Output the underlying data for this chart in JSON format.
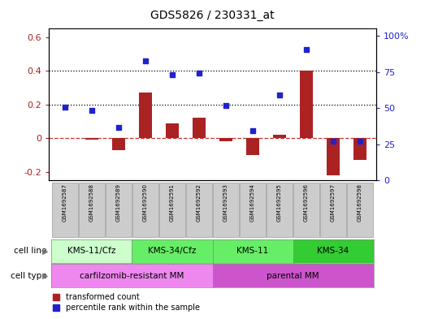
{
  "title": "GDS5826 / 230331_at",
  "samples": [
    "GSM1692587",
    "GSM1692588",
    "GSM1692589",
    "GSM1692590",
    "GSM1692591",
    "GSM1692592",
    "GSM1692593",
    "GSM1692594",
    "GSM1692595",
    "GSM1692596",
    "GSM1692597",
    "GSM1692598"
  ],
  "bar_values": [
    0.0,
    -0.01,
    -0.07,
    0.27,
    0.09,
    0.12,
    -0.02,
    -0.1,
    0.02,
    0.4,
    -0.22,
    -0.13
  ],
  "dot_values": [
    0.185,
    0.165,
    0.065,
    0.46,
    0.375,
    0.385,
    0.195,
    0.045,
    0.255,
    0.525,
    -0.02,
    -0.02
  ],
  "bar_color": "#aa2222",
  "dot_color": "#2222cc",
  "zero_line_color": "#cc3333",
  "hline_values": [
    0.2,
    0.4
  ],
  "hline_color": "#000000",
  "ylim_left": [
    -0.25,
    0.65
  ],
  "ylim_right": [
    0,
    105
  ],
  "right_ticks": [
    0,
    25,
    50,
    75,
    100
  ],
  "right_tick_labels": [
    "0",
    "25",
    "50",
    "75",
    "100%"
  ],
  "left_ticks": [
    -0.2,
    0.0,
    0.2,
    0.4,
    0.6
  ],
  "left_tick_labels": [
    "-0.2",
    "0",
    "0.2",
    "0.4",
    "0.6"
  ],
  "cell_line_groups": [
    {
      "label": "KMS-11/Cfz",
      "start": 0,
      "end": 3,
      "color": "#ccffcc"
    },
    {
      "label": "KMS-34/Cfz",
      "start": 3,
      "end": 6,
      "color": "#66ee66"
    },
    {
      "label": "KMS-11",
      "start": 6,
      "end": 9,
      "color": "#66ee66"
    },
    {
      "label": "KMS-34",
      "start": 9,
      "end": 12,
      "color": "#33cc33"
    }
  ],
  "cell_type_groups": [
    {
      "label": "carfilzomib-resistant MM",
      "start": 0,
      "end": 6,
      "color": "#ee88ee"
    },
    {
      "label": "parental MM",
      "start": 6,
      "end": 12,
      "color": "#cc55cc"
    }
  ],
  "cell_line_label": "cell line",
  "cell_type_label": "cell type",
  "legend_bar_label": "transformed count",
  "legend_dot_label": "percentile rank within the sample",
  "bg_color": "#ffffff",
  "plot_bg_color": "#ffffff",
  "tick_area_color": "#cccccc",
  "bar_width": 0.5
}
